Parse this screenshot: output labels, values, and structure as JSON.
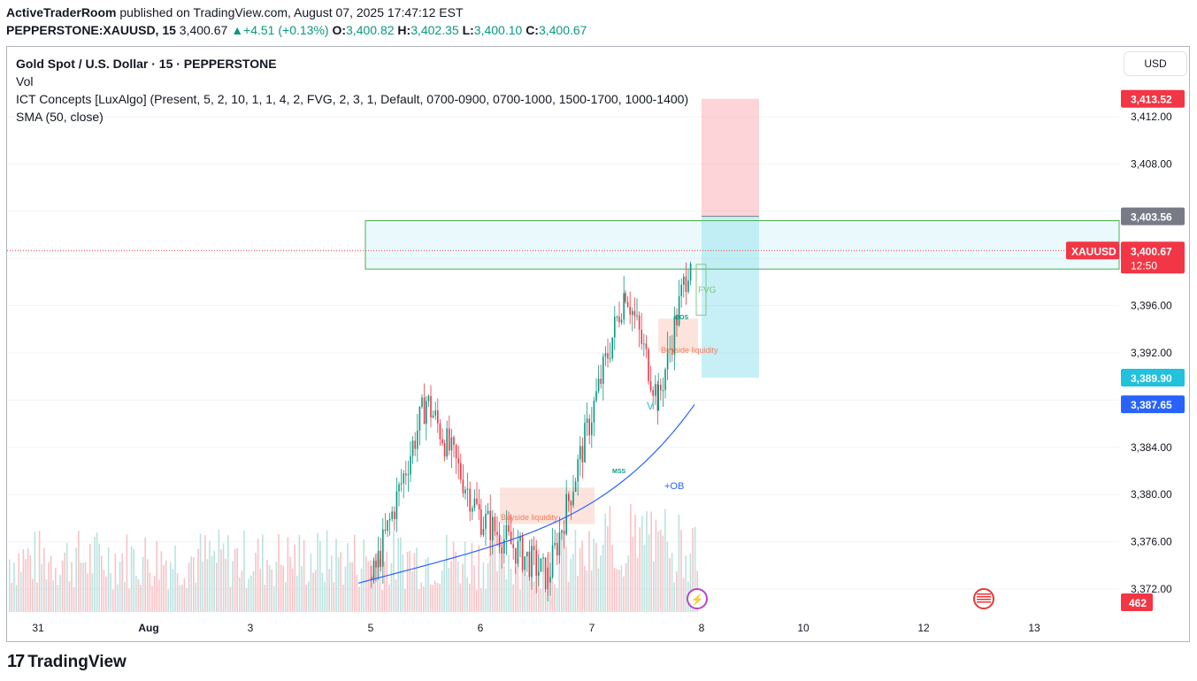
{
  "header": {
    "publisher": "ActiveTraderRoom",
    "published_text": "published on TradingView.com, August 07, 2025 17:47:12 EST",
    "symbol": "PEPPERSTONE:XAUUSD, 15",
    "last": "3,400.67",
    "change": "+4.51 (+0.13%)",
    "o_label": "O:",
    "o": "3,400.82",
    "h_label": "H:",
    "h": "3,402.35",
    "l_label": "L:",
    "l": "3,400.10",
    "c_label": "C:",
    "c": "3,400.67"
  },
  "legend": {
    "title": "Gold Spot / U.S. Dollar · 15 · PEPPERSTONE",
    "vol": "Vol",
    "ict": "ICT Concepts [LuxAlgo] (Present, 5, 2, 10, 1, 1, 4, 2, FVG, 2, 3, 1, Default, 0700-0900, 0700-1000, 1500-1700, 1000-1400)",
    "sma": "SMA (50, close)"
  },
  "currency_button": "USD",
  "footer": {
    "brand": "TradingView"
  },
  "colors": {
    "up": "#089981",
    "down": "#f23645",
    "sma": "#2962ff",
    "target": "#f7525f",
    "stop_zone": "#00bcd4",
    "ob_zone": "#b2ebf2"
  },
  "chart_data": {
    "type": "candlestick",
    "ylim": [
      3370.6,
      3415.0
    ],
    "y_ticks": [
      3372,
      3376,
      3380,
      3384,
      3388,
      3392,
      3396,
      3400,
      3404,
      3408,
      3412
    ],
    "y_tick_labels": [
      "3,372.00",
      "3,376.00",
      "3,380.00",
      "3,384.00",
      "",
      "3,392.00",
      "3,396.00",
      "",
      "",
      "3,408.00",
      "3,412.00"
    ],
    "x_ticks": [
      "31",
      "Aug",
      "3",
      "5",
      "6",
      "7",
      "8",
      "10",
      "12",
      "13"
    ],
    "price_labels": [
      {
        "value": 3413.52,
        "text": "3,413.52",
        "color": "#f23645"
      },
      {
        "value": 3403.56,
        "text": "3,403.56",
        "color": "#787b86"
      },
      {
        "value": 3389.9,
        "text": "3,389.90",
        "color": "#22c1dc"
      },
      {
        "value": 3387.65,
        "text": "3,387.65",
        "color": "#2962ff"
      }
    ],
    "last_price": {
      "value": 3400.67,
      "text": "3,400.67",
      "countdown": "12:50",
      "tag": "XAUUSD"
    },
    "volume_label": "462",
    "series_outline": [
      {
        "x": "5",
        "price": 3372.5
      },
      {
        "x": "5.5",
        "price": 3388.0
      },
      {
        "x": "6",
        "price": 3378.0
      },
      {
        "x": "6.6",
        "price": 3373.0
      },
      {
        "x": "7.3",
        "price": 3397.5
      },
      {
        "x": "7.6",
        "price": 3388.0
      },
      {
        "x": "7.9",
        "price": 3400.67
      }
    ],
    "annotations": [
      {
        "text": "BOS"
      },
      {
        "text": "FVG"
      },
      {
        "text": "Buyside liquidity"
      },
      {
        "text": "Buyside liquidity"
      },
      {
        "text": "MSS"
      },
      {
        "text": "+OB"
      },
      {
        "text": "V"
      }
    ]
  }
}
